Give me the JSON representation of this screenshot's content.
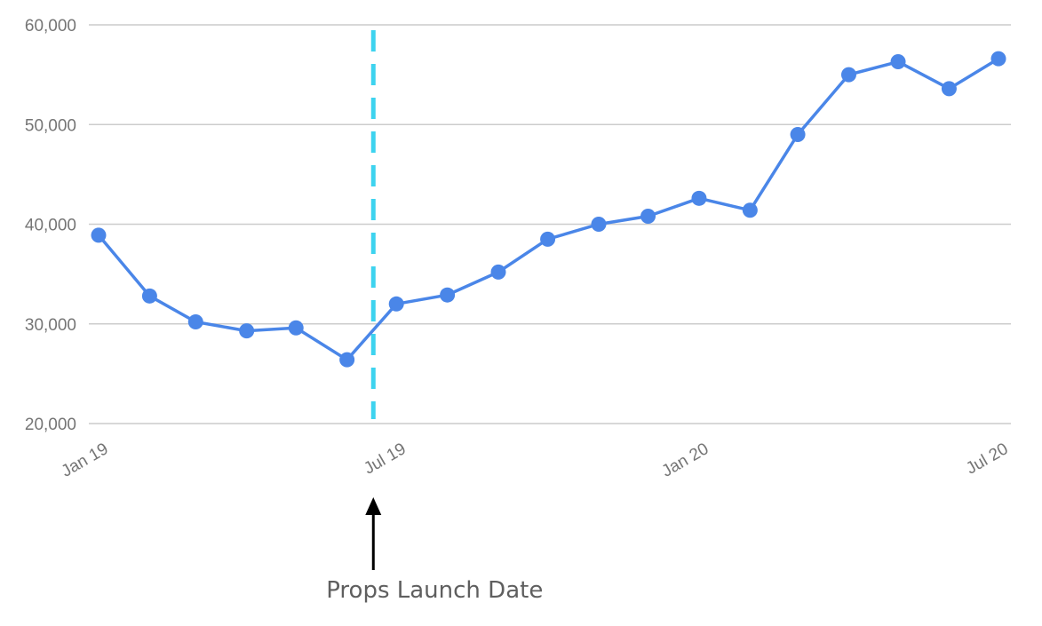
{
  "chart_data": {
    "type": "line",
    "title": "",
    "xlabel": "",
    "ylabel": "",
    "ylim": [
      20000,
      60000
    ],
    "yticks": [
      20000,
      30000,
      40000,
      50000,
      60000
    ],
    "ytick_labels": [
      "20,000",
      "30,000",
      "40,000",
      "50,000",
      "60,000"
    ],
    "xticks": [
      "2019-01-01",
      "2019-07-01",
      "2020-01-01",
      "2020-07-01"
    ],
    "xtick_labels": [
      "Jan 19",
      "Jul 19",
      "Jan 20",
      "Jul 20"
    ],
    "grid": true,
    "series": [
      {
        "color": "#4a86e8",
        "points": [
          {
            "x": "2019-01-01",
            "y": 38900
          },
          {
            "x": "2019-02-01",
            "y": 32800
          },
          {
            "x": "2019-03-01",
            "y": 30200
          },
          {
            "x": "2019-04-01",
            "y": 29300
          },
          {
            "x": "2019-05-01",
            "y": 29600
          },
          {
            "x": "2019-06-01",
            "y": 26400
          },
          {
            "x": "2019-07-01",
            "y": 32000
          },
          {
            "x": "2019-08-01",
            "y": 32900
          },
          {
            "x": "2019-09-01",
            "y": 35200
          },
          {
            "x": "2019-10-01",
            "y": 38500
          },
          {
            "x": "2019-11-01",
            "y": 40000
          },
          {
            "x": "2019-12-01",
            "y": 40800
          },
          {
            "x": "2020-01-01",
            "y": 42600
          },
          {
            "x": "2020-02-01",
            "y": 41400
          },
          {
            "x": "2020-03-01",
            "y": 49000
          },
          {
            "x": "2020-04-01",
            "y": 55000
          },
          {
            "x": "2020-05-01",
            "y": 56300
          },
          {
            "x": "2020-06-01",
            "y": 53600
          },
          {
            "x": "2020-07-01",
            "y": 56600
          }
        ]
      }
    ],
    "annotations": [
      {
        "type": "vline",
        "x": "2019-06-17",
        "style": "dashed",
        "color": "#3dd3ef"
      },
      {
        "type": "arrow",
        "label": "Props Launch Date",
        "color": "#000000"
      }
    ]
  }
}
